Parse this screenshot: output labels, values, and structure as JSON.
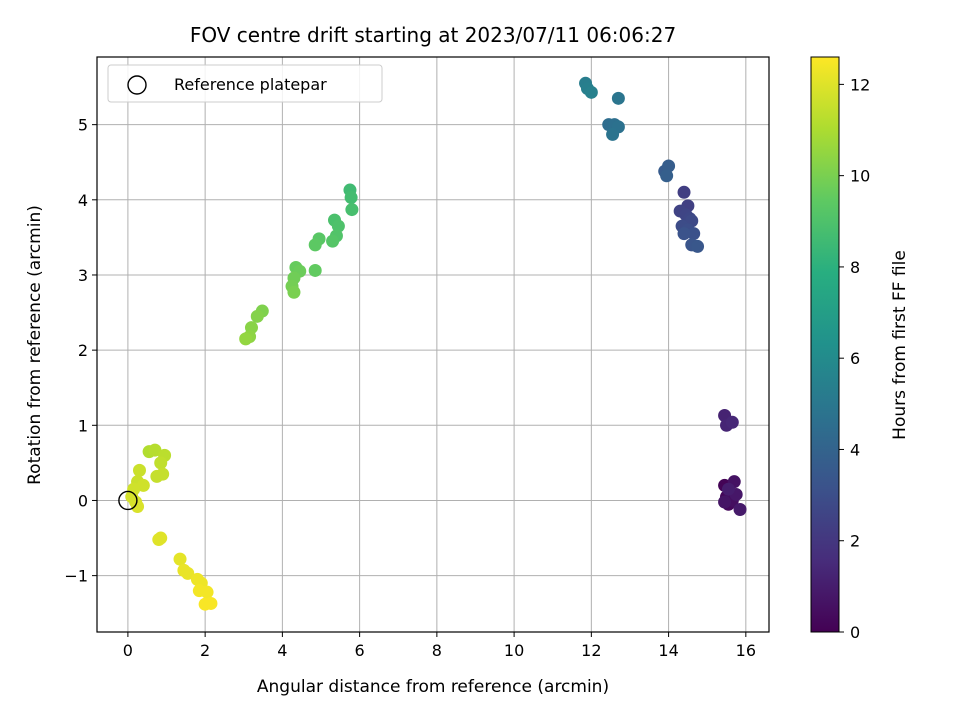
{
  "chart_data": {
    "type": "scatter",
    "title": "FOV centre drift starting at 2023/07/11 06:06:27",
    "xlabel": "Angular distance from reference (arcmin)",
    "ylabel": "Rotation from reference (arcmin)",
    "xlim": [
      -0.8,
      16.6
    ],
    "ylim": [
      -1.75,
      5.9
    ],
    "xticks": [
      0,
      2,
      4,
      6,
      8,
      10,
      12,
      14,
      16
    ],
    "yticks": [
      -1,
      0,
      1,
      2,
      3,
      4,
      5
    ],
    "xtick_labels": [
      "0",
      "2",
      "4",
      "6",
      "8",
      "10",
      "12",
      "14",
      "16"
    ],
    "ytick_labels": [
      "−1",
      "0",
      "1",
      "2",
      "3",
      "4",
      "5"
    ],
    "grid": true,
    "legend": {
      "position": "top-left",
      "entries": [
        "Reference platepar"
      ]
    },
    "reference_point": {
      "x": 0,
      "y": 0,
      "marker": "open-circle"
    },
    "colorbar": {
      "label": "Hours from first FF file",
      "range": [
        0,
        12.6
      ],
      "ticks": [
        0,
        2,
        4,
        6,
        8,
        10,
        12
      ],
      "tick_labels": [
        "0",
        "2",
        "4",
        "6",
        "8",
        "10",
        "12"
      ],
      "colormap": "viridis"
    },
    "points": [
      {
        "x": 15.45,
        "y": 0.2,
        "t": 0.1
      },
      {
        "x": 15.5,
        "y": 0.05,
        "t": 0.2
      },
      {
        "x": 15.55,
        "y": -0.05,
        "t": 0.3
      },
      {
        "x": 15.6,
        "y": 0.1,
        "t": 0.4
      },
      {
        "x": 15.65,
        "y": 0.0,
        "t": 0.5
      },
      {
        "x": 15.7,
        "y": 0.25,
        "t": 0.6
      },
      {
        "x": 15.45,
        "y": -0.02,
        "t": 0.7
      },
      {
        "x": 15.75,
        "y": 0.08,
        "t": 0.8
      },
      {
        "x": 15.85,
        "y": -0.12,
        "t": 0.9
      },
      {
        "x": 15.55,
        "y": 0.15,
        "t": 1.0
      },
      {
        "x": 15.45,
        "y": 1.13,
        "t": 1.2
      },
      {
        "x": 15.5,
        "y": 1.0,
        "t": 1.3
      },
      {
        "x": 15.65,
        "y": 1.04,
        "t": 1.4
      },
      {
        "x": 14.4,
        "y": 4.1,
        "t": 2.3
      },
      {
        "x": 14.5,
        "y": 3.92,
        "t": 2.4
      },
      {
        "x": 14.3,
        "y": 3.85,
        "t": 2.5
      },
      {
        "x": 14.45,
        "y": 3.8,
        "t": 2.6
      },
      {
        "x": 14.55,
        "y": 3.75,
        "t": 2.7
      },
      {
        "x": 14.6,
        "y": 3.72,
        "t": 2.8
      },
      {
        "x": 14.35,
        "y": 3.65,
        "t": 2.9
      },
      {
        "x": 14.5,
        "y": 3.6,
        "t": 3.0
      },
      {
        "x": 14.65,
        "y": 3.55,
        "t": 3.1
      },
      {
        "x": 14.4,
        "y": 3.55,
        "t": 3.2
      },
      {
        "x": 14.6,
        "y": 3.4,
        "t": 3.3
      },
      {
        "x": 14.75,
        "y": 3.38,
        "t": 3.4
      },
      {
        "x": 13.9,
        "y": 4.38,
        "t": 3.6
      },
      {
        "x": 14.0,
        "y": 4.45,
        "t": 3.7
      },
      {
        "x": 13.95,
        "y": 4.32,
        "t": 3.8
      },
      {
        "x": 12.45,
        "y": 5.0,
        "t": 4.5
      },
      {
        "x": 12.6,
        "y": 5.0,
        "t": 4.6
      },
      {
        "x": 12.7,
        "y": 4.97,
        "t": 4.7
      },
      {
        "x": 12.55,
        "y": 4.87,
        "t": 4.8
      },
      {
        "x": 12.7,
        "y": 5.35,
        "t": 4.9
      },
      {
        "x": 11.85,
        "y": 5.55,
        "t": 5.3
      },
      {
        "x": 11.9,
        "y": 5.48,
        "t": 5.4
      },
      {
        "x": 12.0,
        "y": 5.43,
        "t": 5.5
      },
      {
        "x": 5.75,
        "y": 4.13,
        "t": 8.6
      },
      {
        "x": 5.78,
        "y": 4.03,
        "t": 8.7
      },
      {
        "x": 5.8,
        "y": 3.87,
        "t": 8.8
      },
      {
        "x": 5.35,
        "y": 3.73,
        "t": 8.9
      },
      {
        "x": 5.45,
        "y": 3.65,
        "t": 9.0
      },
      {
        "x": 5.4,
        "y": 3.52,
        "t": 9.1
      },
      {
        "x": 5.3,
        "y": 3.45,
        "t": 9.2
      },
      {
        "x": 4.95,
        "y": 3.48,
        "t": 9.3
      },
      {
        "x": 4.85,
        "y": 3.4,
        "t": 9.4
      },
      {
        "x": 4.85,
        "y": 3.06,
        "t": 9.5
      },
      {
        "x": 4.35,
        "y": 3.1,
        "t": 9.6
      },
      {
        "x": 4.45,
        "y": 3.05,
        "t": 9.7
      },
      {
        "x": 4.3,
        "y": 2.96,
        "t": 9.8
      },
      {
        "x": 4.25,
        "y": 2.85,
        "t": 9.9
      },
      {
        "x": 4.3,
        "y": 2.77,
        "t": 10.0
      },
      {
        "x": 3.48,
        "y": 2.52,
        "t": 10.1
      },
      {
        "x": 3.35,
        "y": 2.45,
        "t": 10.2
      },
      {
        "x": 3.2,
        "y": 2.3,
        "t": 10.3
      },
      {
        "x": 3.15,
        "y": 2.18,
        "t": 10.4
      },
      {
        "x": 3.05,
        "y": 2.15,
        "t": 10.5
      },
      {
        "x": 0.55,
        "y": 0.65,
        "t": 11.1
      },
      {
        "x": 0.7,
        "y": 0.67,
        "t": 11.2
      },
      {
        "x": 0.95,
        "y": 0.6,
        "t": 11.3
      },
      {
        "x": 0.85,
        "y": 0.5,
        "t": 11.4
      },
      {
        "x": 0.9,
        "y": 0.35,
        "t": 11.5
      },
      {
        "x": 0.75,
        "y": 0.32,
        "t": 11.5
      },
      {
        "x": 0.3,
        "y": 0.4,
        "t": 11.6
      },
      {
        "x": 0.25,
        "y": 0.25,
        "t": 11.6
      },
      {
        "x": 0.4,
        "y": 0.2,
        "t": 11.7
      },
      {
        "x": 0.15,
        "y": 0.15,
        "t": 11.7
      },
      {
        "x": 0.1,
        "y": 0.05,
        "t": 11.8
      },
      {
        "x": 0.2,
        "y": -0.02,
        "t": 11.8
      },
      {
        "x": 0.25,
        "y": -0.08,
        "t": 11.9
      },
      {
        "x": 0.85,
        "y": -0.5,
        "t": 12.0
      },
      {
        "x": 0.8,
        "y": -0.52,
        "t": 12.0
      },
      {
        "x": 1.35,
        "y": -0.78,
        "t": 12.1
      },
      {
        "x": 1.45,
        "y": -0.93,
        "t": 12.2
      },
      {
        "x": 1.55,
        "y": -0.97,
        "t": 12.2
      },
      {
        "x": 1.8,
        "y": -1.05,
        "t": 12.3
      },
      {
        "x": 1.9,
        "y": -1.1,
        "t": 12.3
      },
      {
        "x": 1.85,
        "y": -1.2,
        "t": 12.4
      },
      {
        "x": 2.05,
        "y": -1.22,
        "t": 12.4
      },
      {
        "x": 2.0,
        "y": -1.38,
        "t": 12.5
      },
      {
        "x": 2.15,
        "y": -1.37,
        "t": 12.5
      }
    ]
  }
}
